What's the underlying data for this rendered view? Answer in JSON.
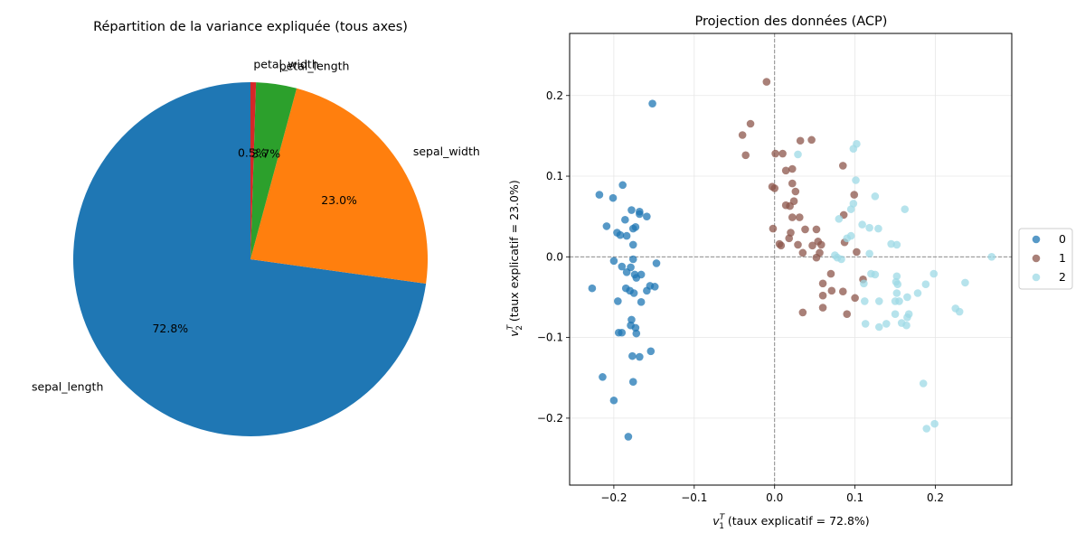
{
  "chart_data": [
    {
      "type": "pie",
      "title": "Répartition de la variance expliquée (tous axes)",
      "labels": [
        "sepal_length",
        "sepal_width",
        "petal_length",
        "petal_width"
      ],
      "values": [
        72.8,
        23.0,
        3.7,
        0.5
      ],
      "autopct_labels": [
        "72.8%",
        "23.0%",
        "3.7%",
        "0.5%"
      ],
      "colors": [
        "#1f77b4",
        "#ff7f0e",
        "#2ca02c",
        "#d62728"
      ],
      "start_angle_deg": 90,
      "direction": "counterclockwise"
    },
    {
      "type": "scatter",
      "title": "Projection des données (ACP)",
      "xlabel": "$v_1^T$ (taux explicatif = 72.8%)",
      "xlabel_parts": {
        "v": "v",
        "sub": "1",
        "sup": "T",
        "rest": " (taux explicatif = 72.8%)"
      },
      "ylabel": "$v_2^T$ (taux explicatif = 23.0%)",
      "ylabel_parts": {
        "v": "v",
        "sub": "2",
        "sup": "T",
        "rest": " (taux explicatif = 23.0%)"
      },
      "xlim": [
        -0.255,
        0.295
      ],
      "ylim": [
        -0.283,
        0.277
      ],
      "xticks": [
        -0.2,
        -0.1,
        0.0,
        0.1,
        0.2
      ],
      "xtick_labels": [
        "−0.2",
        "−0.1",
        "0.0",
        "0.1",
        "0.2"
      ],
      "yticks": [
        -0.2,
        -0.1,
        0.0,
        0.1,
        0.2
      ],
      "ytick_labels": [
        "−0.2",
        "−0.1",
        "0.0",
        "0.1",
        "0.2"
      ],
      "grid": true,
      "reference_lines": {
        "x": 0,
        "y": 0,
        "style": "dashed"
      },
      "legend_placement": "center-right-outside",
      "series": [
        {
          "name": "0",
          "color": "#1f77b4",
          "points": [
            [
              -0.152,
              0.19
            ],
            [
              -0.189,
              0.089
            ],
            [
              -0.218,
              0.077
            ],
            [
              -0.201,
              0.073
            ],
            [
              -0.178,
              0.058
            ],
            [
              -0.168,
              0.056
            ],
            [
              -0.168,
              0.053
            ],
            [
              -0.159,
              0.05
            ],
            [
              -0.186,
              0.046
            ],
            [
              -0.209,
              0.038
            ],
            [
              -0.176,
              0.035
            ],
            [
              -0.173,
              0.037
            ],
            [
              -0.196,
              0.03
            ],
            [
              -0.192,
              0.027
            ],
            [
              -0.184,
              0.026
            ],
            [
              -0.176,
              0.015
            ],
            [
              -0.2,
              -0.005
            ],
            [
              -0.176,
              -0.003
            ],
            [
              -0.147,
              -0.008
            ],
            [
              -0.19,
              -0.012
            ],
            [
              -0.179,
              -0.013
            ],
            [
              -0.184,
              -0.019
            ],
            [
              -0.166,
              -0.022
            ],
            [
              -0.172,
              -0.026
            ],
            [
              -0.174,
              -0.022
            ],
            [
              -0.227,
              -0.039
            ],
            [
              -0.185,
              -0.039
            ],
            [
              -0.18,
              -0.042
            ],
            [
              -0.175,
              -0.045
            ],
            [
              -0.159,
              -0.042
            ],
            [
              -0.155,
              -0.036
            ],
            [
              -0.149,
              -0.037
            ],
            [
              -0.195,
              -0.055
            ],
            [
              -0.166,
              -0.056
            ],
            [
              -0.178,
              -0.078
            ],
            [
              -0.179,
              -0.085
            ],
            [
              -0.173,
              -0.088
            ],
            [
              -0.194,
              -0.094
            ],
            [
              -0.19,
              -0.094
            ],
            [
              -0.172,
              -0.095
            ],
            [
              -0.154,
              -0.117
            ],
            [
              -0.177,
              -0.123
            ],
            [
              -0.168,
              -0.124
            ],
            [
              -0.214,
              -0.149
            ],
            [
              -0.176,
              -0.155
            ],
            [
              -0.2,
              -0.178
            ],
            [
              -0.182,
              -0.223
            ]
          ]
        },
        {
          "name": "1",
          "color": "#8c564b",
          "points": [
            [
              -0.01,
              0.217
            ],
            [
              -0.03,
              0.165
            ],
            [
              -0.04,
              0.151
            ],
            [
              0.032,
              0.144
            ],
            [
              0.046,
              0.145
            ],
            [
              0.001,
              0.128
            ],
            [
              0.01,
              0.128
            ],
            [
              -0.036,
              0.126
            ],
            [
              0.085,
              0.113
            ],
            [
              0.022,
              0.109
            ],
            [
              0.014,
              0.107
            ],
            [
              0.022,
              0.091
            ],
            [
              -0.003,
              0.087
            ],
            [
              0.0,
              0.085
            ],
            [
              0.026,
              0.081
            ],
            [
              0.099,
              0.077
            ],
            [
              0.024,
              0.069
            ],
            [
              0.014,
              0.064
            ],
            [
              0.019,
              0.063
            ],
            [
              0.086,
              0.052
            ],
            [
              0.022,
              0.049
            ],
            [
              0.031,
              0.049
            ],
            [
              -0.002,
              0.035
            ],
            [
              0.038,
              0.034
            ],
            [
              0.052,
              0.034
            ],
            [
              0.02,
              0.03
            ],
            [
              0.018,
              0.023
            ],
            [
              0.054,
              0.019
            ],
            [
              0.058,
              0.015
            ],
            [
              0.087,
              0.018
            ],
            [
              0.006,
              0.016
            ],
            [
              0.008,
              0.014
            ],
            [
              0.029,
              0.015
            ],
            [
              0.047,
              0.014
            ],
            [
              0.102,
              0.006
            ],
            [
              0.035,
              0.005
            ],
            [
              0.056,
              0.005
            ],
            [
              0.052,
              -0.001
            ],
            [
              0.11,
              -0.028
            ],
            [
              0.06,
              -0.033
            ],
            [
              0.071,
              -0.042
            ],
            [
              0.085,
              -0.043
            ],
            [
              0.06,
              -0.048
            ],
            [
              0.1,
              -0.051
            ],
            [
              0.07,
              -0.021
            ],
            [
              0.06,
              -0.063
            ],
            [
              0.035,
              -0.069
            ],
            [
              0.09,
              -0.071
            ]
          ]
        },
        {
          "name": "2",
          "color": "#9edae5",
          "points": [
            [
              0.102,
              0.14
            ],
            [
              0.098,
              0.134
            ],
            [
              0.029,
              0.127
            ],
            [
              0.101,
              0.095
            ],
            [
              0.125,
              0.075
            ],
            [
              0.098,
              0.066
            ],
            [
              0.095,
              0.059
            ],
            [
              0.162,
              0.059
            ],
            [
              0.08,
              0.047
            ],
            [
              0.109,
              0.04
            ],
            [
              0.118,
              0.036
            ],
            [
              0.129,
              0.035
            ],
            [
              0.095,
              0.026
            ],
            [
              0.09,
              0.023
            ],
            [
              0.145,
              0.016
            ],
            [
              0.152,
              0.015
            ],
            [
              0.118,
              0.004
            ],
            [
              0.27,
              0.0
            ],
            [
              0.078,
              -0.001
            ],
            [
              0.083,
              -0.003
            ],
            [
              0.075,
              0.002
            ],
            [
              0.12,
              -0.021
            ],
            [
              0.125,
              -0.022
            ],
            [
              0.198,
              -0.021
            ],
            [
              0.152,
              -0.024
            ],
            [
              0.151,
              -0.031
            ],
            [
              0.153,
              -0.034
            ],
            [
              0.188,
              -0.034
            ],
            [
              0.237,
              -0.032
            ],
            [
              0.111,
              -0.033
            ],
            [
              0.152,
              -0.045
            ],
            [
              0.178,
              -0.045
            ],
            [
              0.165,
              -0.05
            ],
            [
              0.112,
              -0.055
            ],
            [
              0.13,
              -0.055
            ],
            [
              0.15,
              -0.055
            ],
            [
              0.155,
              -0.055
            ],
            [
              0.225,
              -0.064
            ],
            [
              0.23,
              -0.068
            ],
            [
              0.15,
              -0.071
            ],
            [
              0.167,
              -0.071
            ],
            [
              0.165,
              -0.075
            ],
            [
              0.113,
              -0.083
            ],
            [
              0.139,
              -0.083
            ],
            [
              0.158,
              -0.082
            ],
            [
              0.164,
              -0.085
            ],
            [
              0.13,
              -0.087
            ],
            [
              0.185,
              -0.157
            ],
            [
              0.199,
              -0.207
            ],
            [
              0.189,
              -0.213
            ]
          ]
        }
      ]
    }
  ]
}
